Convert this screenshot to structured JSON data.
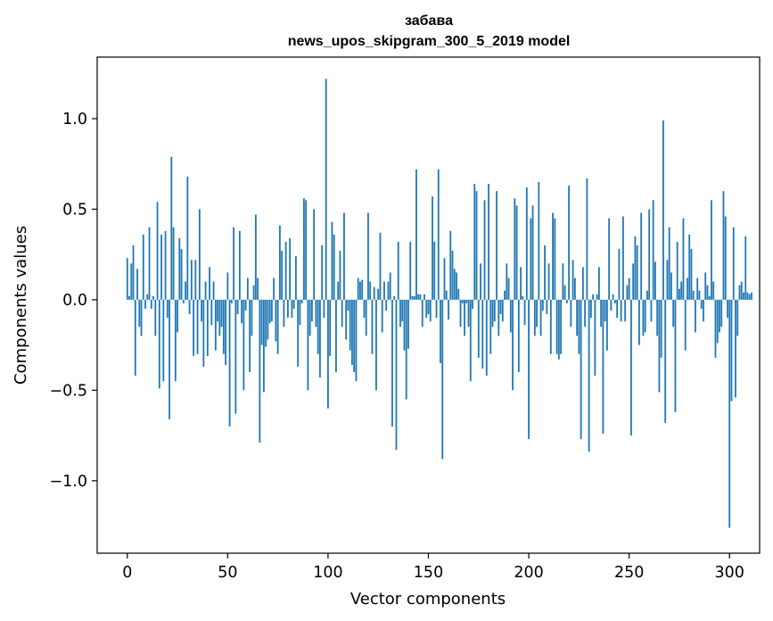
{
  "chart_data": {
    "type": "bar",
    "title": "забава",
    "subtitle": "news_upos_skipgram_300_5_2019 model",
    "xlabel": "Vector components",
    "ylabel": "Components values",
    "xlim": [
      -15,
      315
    ],
    "ylim": [
      -1.4,
      1.34
    ],
    "xticks": [
      0,
      50,
      100,
      150,
      200,
      250,
      300
    ],
    "xtick_labels": [
      "0",
      "50",
      "100",
      "150",
      "200",
      "250",
      "300"
    ],
    "yticks": [
      -1.0,
      -0.5,
      0.0,
      0.5,
      1.0
    ],
    "ytick_labels": [
      "−1.0",
      "−0.5",
      "0.0",
      "0.5",
      "1.0"
    ],
    "grid": false,
    "bar_color": "#1f77b4",
    "values": [
      0.23,
      0.02,
      0.2,
      0.3,
      -0.42,
      0.17,
      -0.15,
      -0.2,
      0.36,
      -0.05,
      0.03,
      0.4,
      -0.05,
      0.02,
      -0.2,
      0.54,
      -0.49,
      0.36,
      -0.45,
      0.38,
      -0.1,
      -0.66,
      0.79,
      0.4,
      -0.45,
      -0.18,
      0.34,
      0.28,
      -0.02,
      0.1,
      0.68,
      -0.08,
      0.22,
      -0.31,
      0.22,
      -0.3,
      0.5,
      -0.12,
      -0.37,
      0.1,
      -0.31,
      0.18,
      -0.14,
      0.1,
      -0.28,
      -0.12,
      -0.2,
      -0.15,
      -0.3,
      -0.36,
      0.15,
      -0.7,
      -0.02,
      0.4,
      -0.63,
      -0.08,
      0.38,
      -0.13,
      -0.5,
      -0.06,
      0.12,
      -0.4,
      -0.2,
      0.08,
      0.47,
      0.12,
      -0.79,
      -0.25,
      -0.51,
      -0.26,
      -0.22,
      -0.13,
      -0.12,
      0.12,
      -0.23,
      -0.3,
      0.41,
      0.27,
      -0.15,
      0.32,
      -0.1,
      0.34,
      -0.1,
      -0.05,
      0.24,
      -0.37,
      -0.14,
      -0.02,
      0.56,
      0.55,
      -0.5,
      -0.2,
      -0.12,
      0.5,
      -0.15,
      -0.3,
      -0.43,
      0.3,
      -0.1,
      1.22,
      -0.6,
      -0.31,
      0.43,
      0.36,
      -0.4,
      0.1,
      0.27,
      -0.15,
      0.48,
      -0.22,
      -0.06,
      -0.28,
      -0.36,
      -0.4,
      -0.45,
      0.12,
      0.1,
      0.11,
      -0.1,
      -0.2,
      0.48,
      0.1,
      -0.3,
      0.07,
      -0.5,
      0.06,
      0.37,
      -0.18,
      0.1,
      -0.06,
      0.1,
      0.15,
      -0.7,
      0.02,
      -0.83,
      0.32,
      -0.15,
      -0.12,
      -0.28,
      -0.55,
      -0.27,
      0.32,
      0.02,
      0.02,
      0.72,
      0.03,
      0.03,
      -0.15,
      0.03,
      -0.1,
      -0.08,
      -0.12,
      0.57,
      0.32,
      -0.1,
      0.72,
      -0.35,
      -0.88,
      0.23,
      0.05,
      -0.11,
      0.38,
      0.27,
      0.17,
      0.15,
      0.06,
      -0.15,
      -0.02,
      -0.2,
      -0.02,
      -0.15,
      -0.45,
      -0.05,
      0.64,
      0.6,
      -0.32,
      0.2,
      -0.38,
      0.55,
      -0.42,
      0.64,
      -0.3,
      -0.15,
      -0.12,
      0.6,
      -0.2,
      -0.08,
      -0.12,
      0.05,
      0.2,
      0.12,
      -0.18,
      -0.5,
      0.56,
      0.52,
      -0.4,
      0.18,
      0.02,
      -0.14,
      0.62,
      -0.77,
      0.45,
      0.52,
      -0.2,
      -0.15,
      0.65,
      -0.2,
      -0.06,
      0.3,
      -0.08,
      0.2,
      -0.3,
      0.48,
      0.45,
      -0.3,
      -0.33,
      -0.3,
      0.2,
      0.08,
      -0.02,
      0.63,
      -0.15,
      0.22,
      0.12,
      -0.2,
      -0.3,
      -0.77,
      0.18,
      -0.15,
      0.67,
      -0.84,
      -0.1,
      0.03,
      -0.42,
      0.03,
      0.18,
      -0.15,
      -0.74,
      -0.12,
      -0.28,
      0.45,
      -0.06,
      0.03,
      -0.02,
      -0.1,
      0.28,
      -0.12,
      0.46,
      -0.12,
      0.08,
      0.12,
      -0.75,
      0.2,
      0.35,
      0.3,
      -0.25,
      0.48,
      -0.2,
      -0.18,
      0.05,
      0.5,
      -0.12,
      0.55,
      0.21,
      -0.2,
      -0.51,
      -0.32,
      0.99,
      -0.68,
      0.22,
      0.4,
      0.15,
      -0.15,
      -0.62,
      0.32,
      0.06,
      0.1,
      0.45,
      -0.28,
      0.12,
      0.36,
      0.28,
      0.05,
      -0.18,
      0.12,
      0.05,
      -0.05,
      -0.12,
      0.15,
      0.08,
      0.02,
      0.55,
      0.1,
      -0.32,
      -0.24,
      -0.18,
      -0.15,
      0.6,
      0.46,
      -0.1,
      -1.26,
      -0.56,
      0.4,
      -0.54,
      -0.2,
      0.08,
      0.1,
      0.04,
      0.35,
      0.04,
      0.03,
      0.04
    ]
  }
}
